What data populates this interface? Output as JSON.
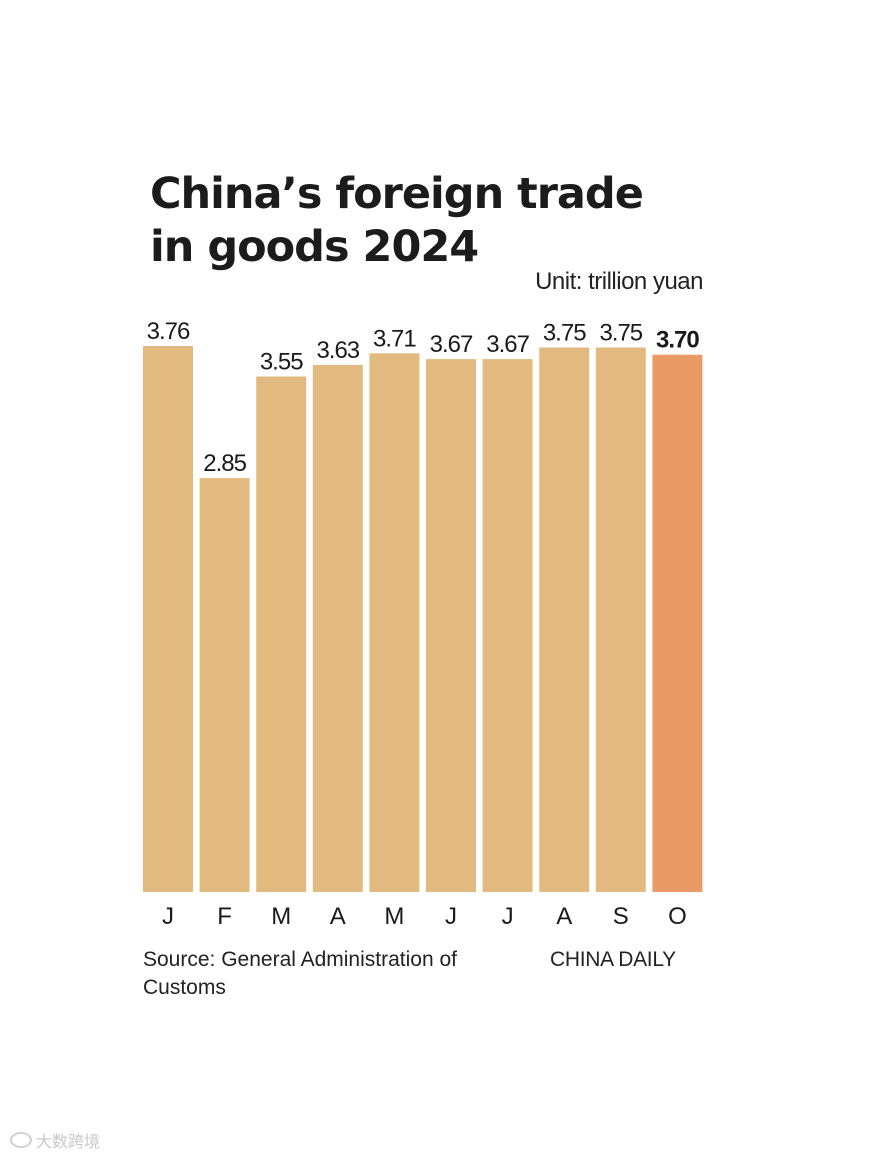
{
  "title_lines": [
    "China’s foreign trade",
    "in goods 2024"
  ],
  "unit": "Unit: trillion yuan",
  "source": "Source: General Administration of Customs",
  "brand": "CHINA DAILY",
  "watermark": "大数跨境",
  "colors": {
    "bar": "#e2ba80",
    "highlight": "#ea9a64"
  },
  "chart_data": {
    "type": "bar",
    "title": "China’s foreign trade in goods 2024",
    "xlabel": "",
    "ylabel": "",
    "ylim": [
      0,
      3.76
    ],
    "categories": [
      "J",
      "F",
      "M",
      "A",
      "M",
      "J",
      "J",
      "A",
      "S",
      "O"
    ],
    "values": [
      3.76,
      2.85,
      3.55,
      3.63,
      3.71,
      3.67,
      3.67,
      3.75,
      3.75,
      3.7
    ],
    "value_labels": [
      "3.76",
      "2.85",
      "3.55",
      "3.63",
      "3.71",
      "3.67",
      "3.67",
      "3.75",
      "3.75",
      "3.70"
    ],
    "highlight_index": 9,
    "grid": false,
    "legend": "none"
  }
}
